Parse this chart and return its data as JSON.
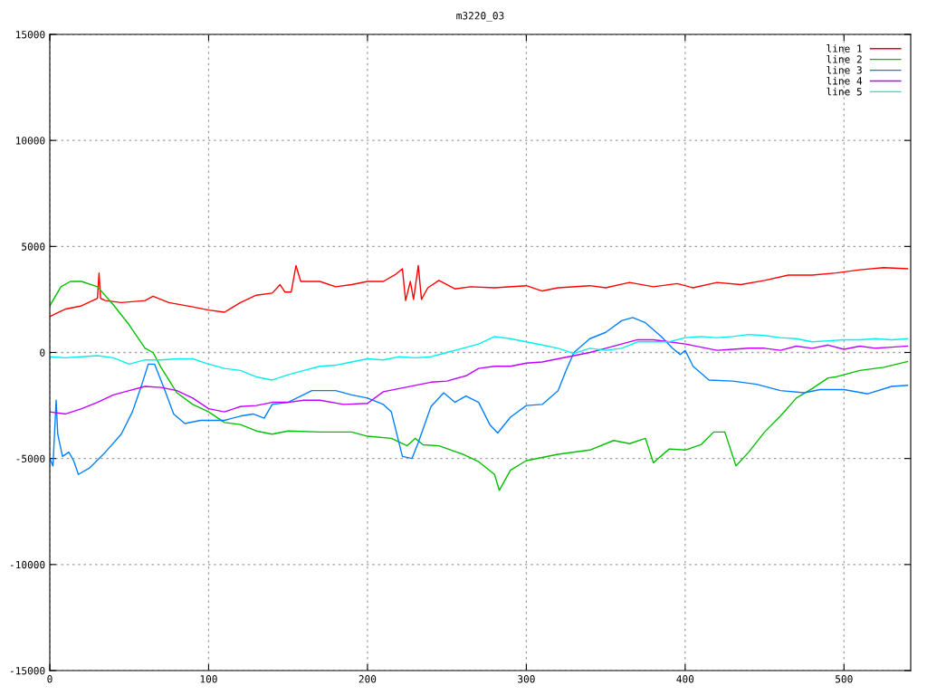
{
  "chart_data": {
    "type": "line",
    "title": "m3220_03",
    "xlim": [
      0,
      542
    ],
    "ylim": [
      -15000,
      15000
    ],
    "xticks": [
      0,
      100,
      200,
      300,
      400,
      500
    ],
    "yticks": [
      -15000,
      -10000,
      -5000,
      0,
      5000,
      10000,
      15000
    ],
    "grid": true,
    "legend": "top right",
    "line_style": "solid",
    "marker": "none",
    "series": [
      {
        "name": "line 1",
        "color": "#ff0000",
        "x": [
          0,
          10,
          20,
          30,
          31,
          32,
          35,
          45,
          60,
          65,
          75,
          90,
          100,
          110,
          120,
          130,
          140,
          145,
          148,
          152,
          155,
          158,
          170,
          180,
          190,
          200,
          210,
          218,
          222,
          224,
          227,
          229,
          232,
          234,
          238,
          245,
          255,
          265,
          280,
          300,
          310,
          320,
          340,
          350,
          365,
          380,
          395,
          405,
          420,
          435,
          450,
          465,
          480,
          495,
          510,
          525,
          540
        ],
        "values": [
          1700,
          2050,
          2200,
          2550,
          3750,
          2550,
          2450,
          2350,
          2450,
          2650,
          2350,
          2150,
          2000,
          1900,
          2350,
          2700,
          2800,
          3200,
          2850,
          2850,
          4100,
          3350,
          3350,
          3100,
          3200,
          3350,
          3350,
          3700,
          3950,
          2450,
          3350,
          2500,
          4100,
          2500,
          3050,
          3400,
          3000,
          3100,
          3050,
          3150,
          2900,
          3050,
          3150,
          3050,
          3300,
          3100,
          3250,
          3050,
          3300,
          3200,
          3400,
          3650,
          3650,
          3750,
          3900,
          4000,
          3950
        ]
      },
      {
        "name": "line 2",
        "color": "#00c000",
        "x": [
          0,
          7,
          13,
          20,
          30,
          40,
          50,
          60,
          65,
          70,
          80,
          90,
          100,
          110,
          120,
          130,
          140,
          150,
          170,
          190,
          200,
          215,
          225,
          230,
          235,
          245,
          260,
          270,
          280,
          283,
          290,
          300,
          320,
          340,
          355,
          365,
          375,
          380,
          390,
          400,
          410,
          418,
          425,
          432,
          440,
          450,
          460,
          470,
          480,
          490,
          495,
          510,
          525,
          540
        ],
        "values": [
          2200,
          3100,
          3350,
          3350,
          3100,
          2250,
          1300,
          200,
          0,
          -700,
          -1900,
          -2450,
          -2800,
          -3300,
          -3400,
          -3700,
          -3850,
          -3700,
          -3750,
          -3750,
          -3950,
          -4050,
          -4400,
          -4050,
          -4350,
          -4400,
          -4800,
          -5150,
          -5750,
          -6500,
          -5550,
          -5100,
          -4800,
          -4600,
          -4150,
          -4300,
          -4050,
          -5200,
          -4550,
          -4600,
          -4350,
          -3750,
          -3750,
          -5350,
          -4700,
          -3750,
          -3000,
          -2150,
          -1700,
          -1200,
          -1150,
          -850,
          -700,
          -430
        ]
      },
      {
        "name": "line 3",
        "color": "#0080ff",
        "x": [
          0,
          2,
          4,
          5,
          8,
          12,
          15,
          18,
          25,
          35,
          45,
          52,
          58,
          62,
          66,
          72,
          78,
          85,
          95,
          110,
          120,
          128,
          135,
          140,
          150,
          165,
          180,
          190,
          200,
          210,
          215,
          222,
          228,
          232,
          240,
          248,
          255,
          262,
          270,
          277,
          282,
          290,
          300,
          310,
          320,
          325,
          330,
          340,
          350,
          360,
          367,
          375,
          385,
          392,
          397,
          400,
          405,
          415,
          430,
          445,
          460,
          475,
          485,
          500,
          515,
          530,
          540
        ],
        "values": [
          -5000,
          -5350,
          -2250,
          -3850,
          -4900,
          -4700,
          -5100,
          -5750,
          -5450,
          -4700,
          -3850,
          -2800,
          -1500,
          -550,
          -550,
          -1700,
          -2900,
          -3350,
          -3200,
          -3200,
          -3000,
          -2900,
          -3100,
          -2450,
          -2350,
          -1800,
          -1800,
          -2000,
          -2150,
          -2450,
          -2800,
          -4900,
          -5000,
          -4250,
          -2550,
          -1900,
          -2350,
          -2050,
          -2350,
          -3400,
          -3800,
          -3050,
          -2500,
          -2450,
          -1800,
          -850,
          0,
          650,
          950,
          1500,
          1650,
          1400,
          750,
          200,
          -100,
          100,
          -650,
          -1300,
          -1350,
          -1500,
          -1800,
          -1900,
          -1750,
          -1750,
          -1950,
          -1600,
          -1550
        ]
      },
      {
        "name": "line 4",
        "color": "#c000ff",
        "x": [
          0,
          10,
          20,
          30,
          40,
          50,
          60,
          70,
          80,
          90,
          100,
          110,
          120,
          130,
          140,
          150,
          160,
          170,
          185,
          200,
          210,
          220,
          230,
          240,
          250,
          262,
          270,
          280,
          290,
          300,
          310,
          320,
          330,
          340,
          350,
          360,
          370,
          380,
          390,
          400,
          410,
          420,
          430,
          440,
          450,
          460,
          470,
          480,
          490,
          500,
          510,
          520,
          530,
          540
        ],
        "values": [
          -2800,
          -2900,
          -2650,
          -2350,
          -2000,
          -1800,
          -1600,
          -1650,
          -1800,
          -2150,
          -2650,
          -2800,
          -2550,
          -2500,
          -2350,
          -2350,
          -2250,
          -2250,
          -2450,
          -2400,
          -1850,
          -1700,
          -1550,
          -1400,
          -1350,
          -1100,
          -750,
          -650,
          -650,
          -500,
          -450,
          -300,
          -150,
          0,
          200,
          400,
          600,
          600,
          500,
          400,
          250,
          100,
          150,
          200,
          200,
          100,
          300,
          200,
          350,
          150,
          300,
          200,
          250,
          300
        ]
      },
      {
        "name": "line 5",
        "color": "#00eeee",
        "x": [
          0,
          10,
          20,
          30,
          40,
          50,
          60,
          70,
          80,
          90,
          100,
          110,
          120,
          130,
          140,
          150,
          160,
          170,
          180,
          190,
          200,
          210,
          220,
          230,
          240,
          250,
          260,
          270,
          280,
          290,
          300,
          310,
          320,
          330,
          340,
          350,
          360,
          370,
          380,
          390,
          400,
          410,
          420,
          430,
          440,
          450,
          460,
          470,
          480,
          490,
          500,
          510,
          520,
          530,
          540
        ],
        "values": [
          -200,
          -250,
          -200,
          -150,
          -250,
          -550,
          -350,
          -350,
          -300,
          -300,
          -550,
          -750,
          -850,
          -1150,
          -1300,
          -1050,
          -850,
          -650,
          -600,
          -450,
          -300,
          -350,
          -200,
          -250,
          -200,
          0,
          200,
          400,
          750,
          650,
          500,
          350,
          200,
          -50,
          200,
          100,
          200,
          500,
          500,
          500,
          700,
          750,
          700,
          750,
          850,
          800,
          700,
          650,
          500,
          550,
          600,
          600,
          650,
          600,
          650
        ]
      }
    ]
  }
}
